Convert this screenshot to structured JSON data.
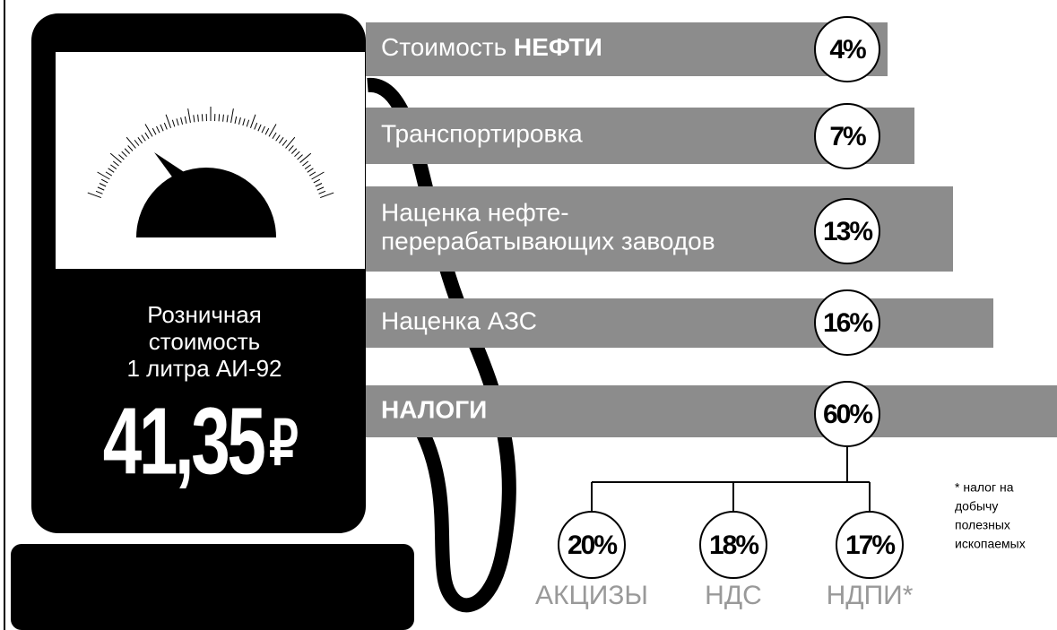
{
  "pump": {
    "label_lines": [
      "Розничная",
      "стоимость",
      "1 литра АИ-92"
    ],
    "price": "41,35",
    "currency": "₽"
  },
  "items": [
    {
      "lines": [
        "Стоимость "
      ],
      "emphasis": "НЕФТИ",
      "percent": "4%"
    },
    {
      "lines": [
        "Транспортировка"
      ],
      "percent": "7%"
    },
    {
      "lines": [
        "Наценка нефте-",
        "перерабатывающих заводов"
      ],
      "percent": "13%"
    },
    {
      "lines": [
        "Наценка АЗС"
      ],
      "percent": "16%"
    },
    {
      "emphasis": "НАЛОГИ",
      "percent": "60%"
    }
  ],
  "taxes": [
    {
      "percent": "20%",
      "label": "АКЦИЗЫ"
    },
    {
      "percent": "18%",
      "label": "НДС"
    },
    {
      "percent": "17%",
      "label": "НДПИ*"
    }
  ],
  "footnote": [
    "* налог на",
    "добычу",
    "полезных",
    "ископаемых"
  ]
}
